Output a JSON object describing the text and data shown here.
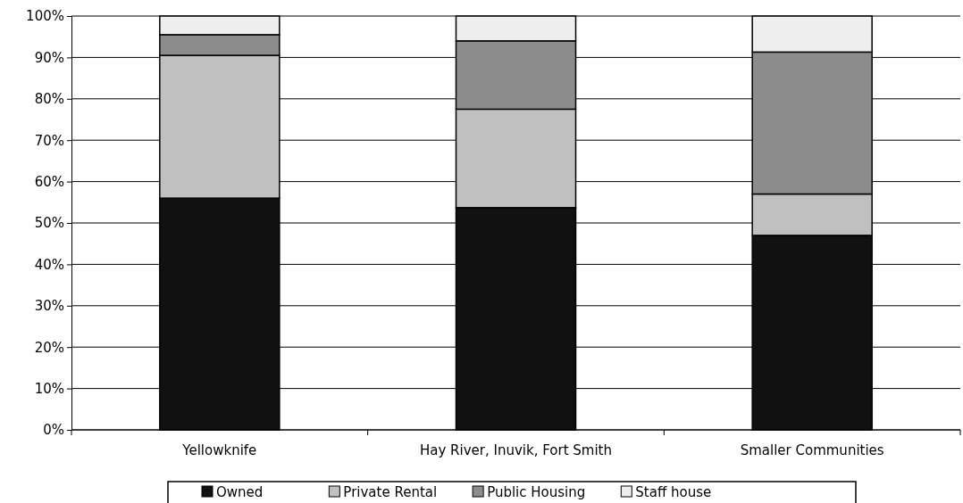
{
  "chart_data": {
    "type": "bar",
    "stacked": true,
    "categories": [
      "Yellowknife",
      "Hay River, Inuvik, Fort Smith",
      "Smaller Communities"
    ],
    "series": [
      {
        "name": "Owned",
        "color": "#111111",
        "values": [
          56,
          53.7,
          47
        ]
      },
      {
        "name": "Private Rental",
        "color": "#c0c0c0",
        "values": [
          34.5,
          23.8,
          10
        ]
      },
      {
        "name": "Public Housing",
        "color": "#8c8c8c",
        "values": [
          5,
          16.5,
          34.3
        ]
      },
      {
        "name": "Staff house",
        "color": "#eeeeee",
        "values": [
          4.5,
          6,
          8.7
        ]
      }
    ],
    "ylim": [
      0,
      100
    ],
    "yticks": [
      {
        "value": 0,
        "label": "0%"
      },
      {
        "value": 10,
        "label": "10%"
      },
      {
        "value": 20,
        "label": "20%"
      },
      {
        "value": 30,
        "label": "30%"
      },
      {
        "value": 40,
        "label": "40%"
      },
      {
        "value": 50,
        "label": "50%"
      },
      {
        "value": 60,
        "label": "60%"
      },
      {
        "value": 70,
        "label": "70%"
      },
      {
        "value": 80,
        "label": "80%"
      },
      {
        "value": 90,
        "label": "90%"
      },
      {
        "value": 100,
        "label": "100%"
      }
    ],
    "grid": "y",
    "legend": "bottom"
  }
}
